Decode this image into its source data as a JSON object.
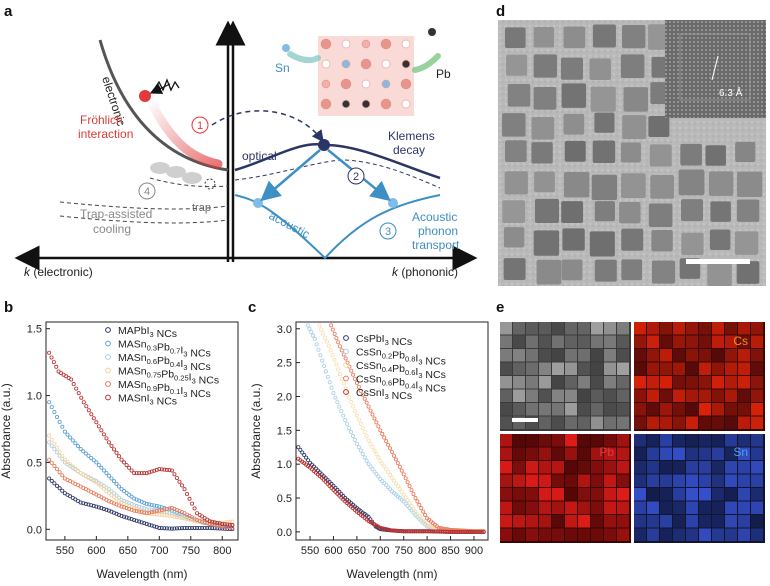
{
  "panel_labels": {
    "a": "a",
    "b": "b",
    "c": "c",
    "d": "d",
    "e": "e"
  },
  "panel_a": {
    "electronic_label": "electronic",
    "frohlich_line1": "Fröhlich",
    "frohlich_line2": "interaction",
    "step1": "1",
    "step2": "2",
    "step3": "3",
    "step4": "4",
    "trap_label": "trap",
    "trap_assisted_line1": "Trap-assisted",
    "trap_assisted_line2": "cooling",
    "optical_label": "optical",
    "acoustic_label": "acoustic",
    "klemens_line1": "Klemens",
    "klemens_line2": "decay",
    "acoustic_transport_line1": "Acoustic",
    "acoustic_transport_line2": "phonon",
    "acoustic_transport_line3": "transport",
    "sn_label": "Sn",
    "pb_label": "Pb",
    "k_electronic_k": "k",
    "k_electronic_rest": " (electronic)",
    "k_phononic_k": "k",
    "k_phononic_rest": " (phononic)",
    "colors": {
      "red": "#e03a3a",
      "blue": "#3d8fc4",
      "navy": "#2b3566",
      "gray": "#8a8a8a"
    }
  },
  "panel_d": {
    "lattice_spacing": "6.3 Å"
  },
  "panel_e": {
    "cs_label": "Cs",
    "pb_label": "Pb",
    "sn_label": "Sn",
    "cs_color": "#f08a2a",
    "pb_color": "#e03a3a",
    "sn_color": "#4aa0e0"
  },
  "chart_data": [
    {
      "id": "b",
      "type": "scatter",
      "xlabel": "Wavelength (nm)",
      "ylabel": "Absorbance (a.u.)",
      "xlim": [
        520,
        825
      ],
      "ylim": [
        -0.08,
        1.55
      ],
      "xticks": [
        550,
        600,
        650,
        700,
        750,
        800
      ],
      "yticks": [
        0.0,
        0.5,
        1.0,
        1.5
      ],
      "xtick_labels": [
        "550",
        "600",
        "650",
        "700",
        "750",
        "800"
      ],
      "ytick_labels": [
        "0.0",
        "0.5",
        "1.0",
        "1.5"
      ],
      "legend": [
        {
          "base": "MAPbI",
          "sub": "3",
          "rest": " NCs",
          "color": "#2b3566"
        },
        {
          "base": "MASn",
          "sub": "0.3",
          "mid": "Pb",
          "sub2": "0.7",
          "mid2": "I",
          "sub3": "3",
          "rest": " NCs",
          "color": "#5a9fd4"
        },
        {
          "base": "MASn",
          "sub": "0.6",
          "mid": "Pb",
          "sub2": "0.4",
          "mid2": "I",
          "sub3": "3",
          "rest": " NCs",
          "color": "#a9cfe8"
        },
        {
          "base": "MASn",
          "sub": "0.75",
          "mid": "Pb",
          "sub2": "0.25",
          "mid2": "I",
          "sub3": "3",
          "rest": " NCs",
          "color": "#f4d29a"
        },
        {
          "base": "MASn",
          "sub": "0.9",
          "mid": "Pb",
          "sub2": "0.1",
          "mid2": "I",
          "sub3": "3",
          "rest": " NCs",
          "color": "#e87a5a"
        },
        {
          "base": "MASnI",
          "sub": "3",
          "rest": " NCs",
          "color": "#b83030"
        }
      ],
      "series": [
        {
          "name": "MAPbI3 NCs",
          "color": "#2b3566",
          "x": [
            525,
            550,
            575,
            600,
            620,
            640,
            660,
            680,
            700,
            720,
            740,
            760,
            780,
            800,
            820
          ],
          "y": [
            0.38,
            0.27,
            0.2,
            0.17,
            0.14,
            0.1,
            0.07,
            0.04,
            0.01,
            0.005,
            0.01,
            0.01,
            0.01,
            0.005,
            0.0
          ]
        },
        {
          "name": "MASn0.3Pb0.7I3 NCs",
          "color": "#5a9fd4",
          "x": [
            525,
            550,
            575,
            600,
            620,
            640,
            660,
            680,
            700,
            720,
            740,
            760,
            780,
            800,
            820
          ],
          "y": [
            0.95,
            0.73,
            0.6,
            0.5,
            0.4,
            0.3,
            0.23,
            0.19,
            0.17,
            0.14,
            0.1,
            0.06,
            0.04,
            0.03,
            0.03
          ]
        },
        {
          "name": "MASn0.6Pb0.4I3 NCs",
          "color": "#a9cfe8",
          "x": [
            525,
            550,
            575,
            600,
            620,
            640,
            660,
            680,
            700,
            720,
            740,
            760,
            780,
            800,
            820
          ],
          "y": [
            0.65,
            0.5,
            0.42,
            0.36,
            0.3,
            0.22,
            0.18,
            0.15,
            0.14,
            0.12,
            0.09,
            0.06,
            0.05,
            0.04,
            0.03
          ]
        },
        {
          "name": "MASn0.75Pb0.25I3 NCs",
          "color": "#f4d29a",
          "x": [
            525,
            550,
            575,
            600,
            620,
            640,
            660,
            680,
            700,
            720,
            740,
            760,
            780,
            800,
            820
          ],
          "y": [
            0.7,
            0.52,
            0.42,
            0.35,
            0.27,
            0.2,
            0.16,
            0.12,
            0.11,
            0.1,
            0.08,
            0.06,
            0.05,
            0.05,
            0.06
          ]
        },
        {
          "name": "MASn0.9Pb0.1I3 NCs",
          "color": "#e87a5a",
          "x": [
            525,
            550,
            575,
            600,
            620,
            640,
            660,
            680,
            700,
            720,
            740,
            760,
            780,
            800,
            820
          ],
          "y": [
            0.52,
            0.38,
            0.32,
            0.26,
            0.21,
            0.17,
            0.14,
            0.12,
            0.14,
            0.16,
            0.12,
            0.07,
            0.04,
            0.02,
            0.01
          ]
        },
        {
          "name": "MASnI3 NCs",
          "color": "#b83030",
          "x": [
            525,
            540,
            560,
            580,
            600,
            620,
            640,
            660,
            680,
            700,
            720,
            740,
            760,
            780,
            800,
            820
          ],
          "y": [
            1.32,
            1.18,
            1.12,
            0.95,
            0.8,
            0.65,
            0.52,
            0.42,
            0.42,
            0.45,
            0.44,
            0.3,
            0.12,
            0.06,
            0.04,
            0.03
          ]
        }
      ]
    },
    {
      "id": "c",
      "type": "scatter",
      "xlabel": "Wavelength (nm)",
      "ylabel": "Absorbance (a.u.)",
      "xlim": [
        520,
        930
      ],
      "ylim": [
        -0.12,
        3.1
      ],
      "xticks": [
        550,
        600,
        650,
        700,
        750,
        800,
        850,
        900
      ],
      "yticks": [
        0.0,
        0.5,
        1.0,
        1.5,
        2.0,
        2.5,
        3.0
      ],
      "xtick_labels": [
        "550",
        "600",
        "650",
        "700",
        "750",
        "800",
        "850",
        "900"
      ],
      "ytick_labels": [
        "0.0",
        "0.5",
        "1.0",
        "1.5",
        "2.0",
        "2.5",
        "3.0"
      ],
      "legend": [
        {
          "base": "CsPbI",
          "sub": "3",
          "rest": " NCs",
          "color": "#2b3566"
        },
        {
          "base": "CsSn",
          "sub": "0.2",
          "mid": "Pb",
          "sub2": "0.8",
          "mid2": "I",
          "sub3": "3",
          "rest": " NCs",
          "color": "#a9cfe8"
        },
        {
          "base": "CsSn",
          "sub": "0.4",
          "mid": "Pb",
          "sub2": "0.6",
          "mid2": "I",
          "sub3": "3",
          "rest": " NCs",
          "color": "#f4e0b0"
        },
        {
          "base": "CsSn",
          "sub": "0.6",
          "mid": "Pb",
          "sub2": "0.4",
          "mid2": "I",
          "sub3": "3",
          "rest": " NCs",
          "color": "#e87a5a"
        },
        {
          "base": "CsSnI",
          "sub": "3",
          "rest": " NCs",
          "color": "#b83030"
        }
      ],
      "series": [
        {
          "name": "CsPbI3 NCs",
          "color": "#2b3566",
          "x": [
            525,
            550,
            575,
            600,
            625,
            650,
            675,
            690,
            700,
            725,
            750,
            800,
            850,
            900,
            925
          ],
          "y": [
            1.25,
            1.02,
            0.85,
            0.68,
            0.5,
            0.35,
            0.22,
            0.08,
            0.04,
            0.02,
            0.01,
            0.01,
            0.0,
            0.0,
            0.0
          ]
        },
        {
          "name": "CsSn0.2Pb0.8I3 NCs",
          "color": "#a9cfe8",
          "x": [
            545,
            560,
            580,
            600,
            625,
            650,
            675,
            700,
            725,
            750,
            775,
            800,
            825,
            850,
            900,
            925
          ],
          "y": [
            3.05,
            2.85,
            2.45,
            2.05,
            1.65,
            1.3,
            1.0,
            0.78,
            0.6,
            0.45,
            0.25,
            0.08,
            0.03,
            0.02,
            0.01,
            0.01
          ]
        },
        {
          "name": "CsSn0.4Pb0.6I3 NCs",
          "color": "#f4e0b0",
          "x": [
            570,
            590,
            610,
            630,
            650,
            675,
            700,
            725,
            750,
            775,
            800,
            825,
            850,
            900,
            925
          ],
          "y": [
            3.05,
            2.75,
            2.4,
            2.05,
            1.72,
            1.35,
            1.05,
            0.8,
            0.55,
            0.3,
            0.1,
            0.04,
            0.02,
            0.01,
            0.01
          ]
        },
        {
          "name": "CsSn0.6Pb0.4I3 NCs",
          "color": "#e87a5a",
          "x": [
            595,
            610,
            630,
            650,
            675,
            700,
            725,
            750,
            775,
            800,
            825,
            850,
            875,
            900,
            925
          ],
          "y": [
            3.05,
            2.8,
            2.5,
            2.2,
            1.85,
            1.5,
            1.18,
            0.85,
            0.5,
            0.2,
            0.06,
            0.03,
            0.02,
            0.01,
            0.01
          ]
        },
        {
          "name": "CsSnI3 NCs",
          "color": "#b83030",
          "x": [
            525,
            550,
            575,
            600,
            625,
            650,
            675,
            700,
            725,
            750,
            800,
            850,
            900,
            925
          ],
          "y": [
            1.08,
            0.95,
            0.8,
            0.62,
            0.45,
            0.3,
            0.16,
            0.06,
            0.02,
            0.01,
            0.01,
            0.0,
            0.0,
            0.0
          ]
        }
      ]
    }
  ]
}
